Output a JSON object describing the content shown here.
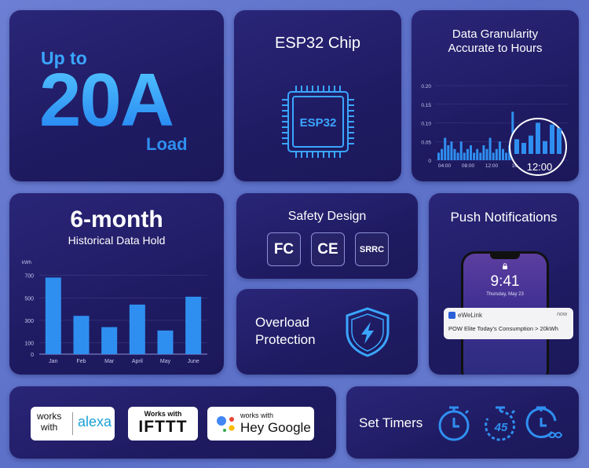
{
  "load": {
    "upto": "Up to",
    "big": "20A",
    "unit": "Load"
  },
  "chip": {
    "title": "ESP32 Chip",
    "label": "ESP32"
  },
  "granularity": {
    "title_line1": "Data Granularity",
    "title_line2": "Accurate to Hours",
    "y_ticks": [
      "0.20",
      "0.15",
      "0.10",
      "0.05",
      "0"
    ],
    "x_ticks": [
      "04:00",
      "08:00",
      "12:00",
      "16:"
    ],
    "zoom_label": "12:00"
  },
  "history": {
    "title": "6-month",
    "subtitle": "Historical Data Hold",
    "unit": "kWh"
  },
  "chart_data": {
    "type": "bar",
    "categories": [
      "Jan",
      "Feb",
      "Mar",
      "April",
      "May",
      "June"
    ],
    "values": [
      680,
      340,
      240,
      440,
      210,
      510
    ],
    "ylabel": "kWh",
    "yticks": [
      "700",
      "500",
      "300",
      "100",
      "0"
    ],
    "ylim": [
      0,
      760
    ]
  },
  "safety": {
    "title": "Safety Design",
    "certs": [
      "FC",
      "CE",
      "SRRC"
    ]
  },
  "overload": {
    "line1": "Overload",
    "line2": "Protection"
  },
  "push": {
    "title": "Push Notifications",
    "time": "9:41",
    "date": "Thursday, May 23",
    "app": "eWeLink",
    "when": "now",
    "message": "POW Elite Today's Consumption > 20kWh"
  },
  "works": {
    "alexa_works_1": "works",
    "alexa_works_2": "with",
    "alexa_word": "alexa",
    "ifttt_works": "Works with",
    "ifttt_word": "IFTTT",
    "google_works": "works with",
    "google_word": "Hey Google"
  },
  "timers": {
    "title": "Set Timers",
    "countdown": "45"
  },
  "colors": {
    "accent": "#2f8ff0",
    "card": "#221e68",
    "background": "#6275cc"
  }
}
